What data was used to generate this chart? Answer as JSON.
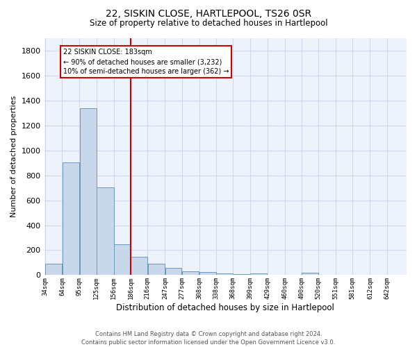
{
  "title": "22, SISKIN CLOSE, HARTLEPOOL, TS26 0SR",
  "subtitle": "Size of property relative to detached houses in Hartlepool",
  "xlabel": "Distribution of detached houses by size in Hartlepool",
  "ylabel": "Number of detached properties",
  "footer_line1": "Contains HM Land Registry data © Crown copyright and database right 2024.",
  "footer_line2": "Contains public sector information licensed under the Open Government Licence v3.0.",
  "bar_labels": [
    "34sqm",
    "64sqm",
    "95sqm",
    "125sqm",
    "156sqm",
    "186sqm",
    "216sqm",
    "247sqm",
    "277sqm",
    "308sqm",
    "338sqm",
    "368sqm",
    "399sqm",
    "429sqm",
    "460sqm",
    "490sqm",
    "520sqm",
    "551sqm",
    "581sqm",
    "612sqm",
    "642sqm"
  ],
  "bar_values": [
    90,
    905,
    1340,
    705,
    245,
    145,
    90,
    58,
    28,
    25,
    15,
    10,
    14,
    0,
    0,
    18,
    0,
    0,
    0,
    0,
    0
  ],
  "bar_color": "#c8d8ea",
  "bar_edge_color": "#6699bb",
  "grid_color": "#d0d8f0",
  "bg_color": "#eef2fb",
  "annotation_text": "22 SISKIN CLOSE: 183sqm\n← 90% of detached houses are smaller (3,232)\n10% of semi-detached houses are larger (362) →",
  "annotation_box_color": "#ffffff",
  "annotation_box_edge": "#cc0000",
  "red_line_x": 186,
  "ylim": [
    0,
    1900
  ],
  "yticks": [
    0,
    200,
    400,
    600,
    800,
    1000,
    1200,
    1400,
    1600,
    1800
  ],
  "bin_edges": [
    34,
    64,
    95,
    125,
    156,
    186,
    216,
    247,
    277,
    308,
    338,
    368,
    399,
    429,
    460,
    490,
    520,
    551,
    581,
    612,
    642,
    672
  ]
}
